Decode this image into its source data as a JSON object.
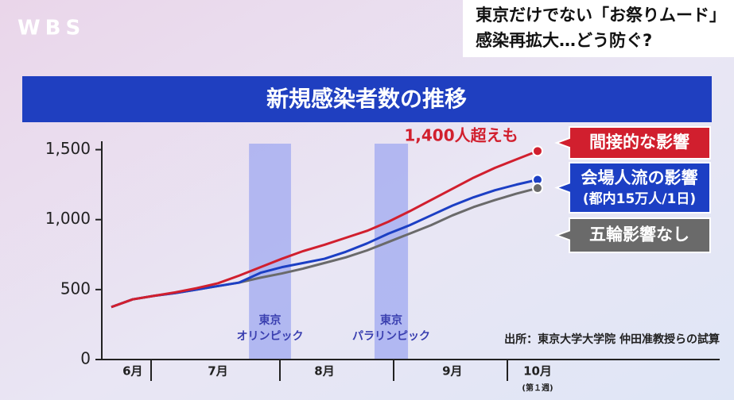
{
  "logo": "WBS",
  "headline": [
    "東京だけでない「お祭りムード」",
    "感染再拡大…どう防ぐ?"
  ],
  "chart_data": {
    "type": "line",
    "title": "新規感染者数の推移",
    "categories": [
      null,
      "6月",
      null,
      null,
      null,
      "7月",
      null,
      null,
      null,
      null,
      "8月",
      null,
      null,
      null,
      null,
      null,
      "9月",
      null,
      null,
      null,
      "10月"
    ],
    "category_sublabels": {
      "20": "(第１週)"
    },
    "series": [
      {
        "name": "間接的な影響",
        "color": "#d11f2e",
        "values": [
          375,
          430,
          455,
          480,
          510,
          545,
          600,
          660,
          720,
          775,
          820,
          870,
          920,
          985,
          1060,
          1140,
          1220,
          1300,
          1370,
          1430,
          1490
        ]
      },
      {
        "name": "会場人流の影響",
        "note": "(都内15万人/1日)",
        "color": "#1c3fc4",
        "values": [
          375,
          430,
          455,
          475,
          500,
          525,
          550,
          620,
          660,
          690,
          720,
          770,
          830,
          900,
          960,
          1030,
          1100,
          1160,
          1210,
          1250,
          1285
        ]
      },
      {
        "name": "五輪影響なし",
        "color": "#6a6a6a",
        "values": [
          375,
          430,
          455,
          475,
          500,
          525,
          550,
          585,
          615,
          650,
          690,
          730,
          780,
          840,
          900,
          960,
          1030,
          1090,
          1140,
          1185,
          1225
        ]
      }
    ],
    "ylim": [
      0,
      1560
    ],
    "yticks": [
      0,
      500,
      {
        "value": 1000,
        "label": "1,000"
      },
      {
        "value": 1500,
        "label": "1,500"
      }
    ],
    "shaded": [
      {
        "label": [
          "東京",
          "オリンピック"
        ],
        "from": 6.46,
        "to": 8.43,
        "color": "#9fa8f0"
      },
      {
        "label": [
          "東京",
          "パラリンピック"
        ],
        "from": 12.35,
        "to": 13.92,
        "color": "#9fa8f0"
      }
    ],
    "annotation": "1,400人超えも",
    "source": "出所：東京大学大学院 仲田准教授らの試算"
  }
}
